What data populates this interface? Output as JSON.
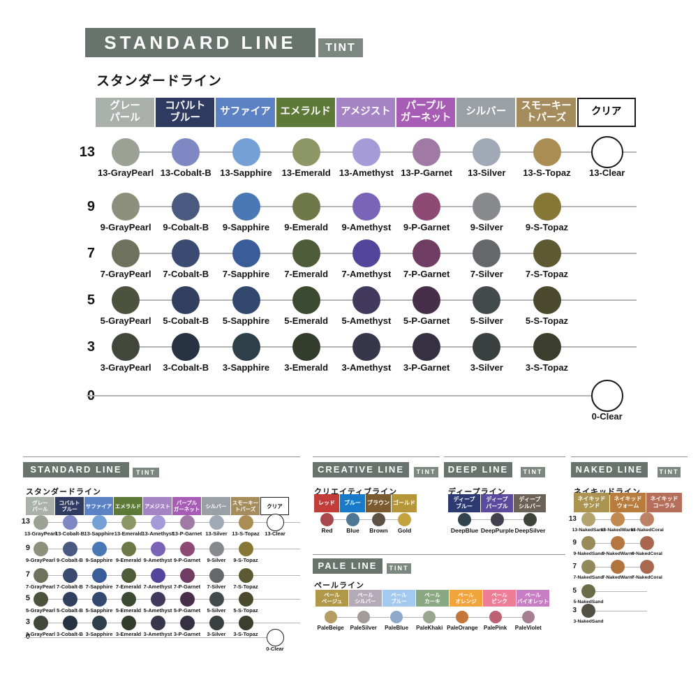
{
  "colors": {
    "title_bg": "#68736d",
    "tint_bg": "#7d8781",
    "rule_line": "#b3b3b3",
    "clear_outline": "#1a1a1a"
  },
  "panels": {
    "standard": {
      "title": "STANDARD LINE",
      "tint": "TINT",
      "subtitle": "スタンダードライン",
      "columns": [
        {
          "label": "グレー\nパール",
          "bg": "#a9b1aa",
          "fg": "#ffffff"
        },
        {
          "label": "コバルト\nブルー",
          "bg": "#2f3a61",
          "fg": "#ffffff"
        },
        {
          "label": "サファイア",
          "bg": "#5c82c5",
          "fg": "#ffffff"
        },
        {
          "label": "エメラルド",
          "bg": "#5e7a39",
          "fg": "#ffffff"
        },
        {
          "label": "アメジスト",
          "bg": "#a583c5",
          "fg": "#ffffff"
        },
        {
          "label": "パープル\nガーネット",
          "bg": "#a75cb5",
          "fg": "#ffffff"
        },
        {
          "label": "シルバー",
          "bg": "#9aa0a4",
          "fg": "#ffffff"
        },
        {
          "label": "スモーキー\nトパーズ",
          "bg": "#a58c5c",
          "fg": "#ffffff"
        },
        {
          "label": "クリア",
          "bg": "#ffffff",
          "fg": "#000000",
          "border": true
        }
      ],
      "rows": [
        {
          "level": "13",
          "swatches": [
            {
              "label": "13-GrayPearl",
              "color": "#9ba295"
            },
            {
              "label": "13-Cobalt-B",
              "color": "#7e88c3"
            },
            {
              "label": "13-Sapphire",
              "color": "#74a0d6"
            },
            {
              "label": "13-Emerald",
              "color": "#8d9765"
            },
            {
              "label": "13-Amethyst",
              "color": "#a49bd8"
            },
            {
              "label": "13-P-Garnet",
              "color": "#a07aa5"
            },
            {
              "label": "13-Silver",
              "color": "#a0a9b5"
            },
            {
              "label": "13-S-Topaz",
              "color": "#a98d55"
            },
            {
              "label": "13-Clear",
              "color": "clear",
              "col": 8
            }
          ]
        },
        {
          "level": "9",
          "swatches": [
            {
              "label": "9-GrayPearl",
              "color": "#8d907c"
            },
            {
              "label": "9-Cobalt-B",
              "color": "#49597f"
            },
            {
              "label": "9-Sapphire",
              "color": "#4a78b5"
            },
            {
              "label": "9-Emerald",
              "color": "#6d7748"
            },
            {
              "label": "9-Amethyst",
              "color": "#7a64b8"
            },
            {
              "label": "9-P-Garnet",
              "color": "#8d4a75"
            },
            {
              "label": "9-Silver",
              "color": "#87898d"
            },
            {
              "label": "9-S-Topaz",
              "color": "#877736"
            }
          ]
        },
        {
          "level": "7",
          "swatches": [
            {
              "label": "7-GrayPearl",
              "color": "#6e715c"
            },
            {
              "label": "7-Cobalt-B",
              "color": "#3b4a70"
            },
            {
              "label": "7-Sapphire",
              "color": "#3a5d99"
            },
            {
              "label": "7-Emerald",
              "color": "#4f5c39"
            },
            {
              "label": "7-Amethyst",
              "color": "#53459c"
            },
            {
              "label": "7-P-Garnet",
              "color": "#6f3c63"
            },
            {
              "label": "7-Silver",
              "color": "#65676a"
            },
            {
              "label": "7-S-Topaz",
              "color": "#5d5a33"
            }
          ]
        },
        {
          "level": "5",
          "swatches": [
            {
              "label": "5-GrayPearl",
              "color": "#4c523e"
            },
            {
              "label": "5-Cobalt-B",
              "color": "#32405f"
            },
            {
              "label": "5-Sapphire",
              "color": "#32486e"
            },
            {
              "label": "5-Emerald",
              "color": "#3c4a31"
            },
            {
              "label": "5-Amethyst",
              "color": "#423a5d"
            },
            {
              "label": "5-P-Garnet",
              "color": "#472e49"
            },
            {
              "label": "5-Silver",
              "color": "#434a4c"
            },
            {
              "label": "5-S-Topaz",
              "color": "#4c4a2e"
            }
          ]
        },
        {
          "level": "3",
          "swatches": [
            {
              "label": "3-GrayPearl",
              "color": "#41473a"
            },
            {
              "label": "3-Cobalt-B",
              "color": "#273342"
            },
            {
              "label": "3-Sapphire",
              "color": "#2e3f4a"
            },
            {
              "label": "3-Emerald",
              "color": "#343d2c"
            },
            {
              "label": "3-Amethyst",
              "color": "#38364a"
            },
            {
              "label": "3-P-Garnet",
              "color": "#363142"
            },
            {
              "label": "3-Silver",
              "color": "#3a403f"
            },
            {
              "label": "3-S-Topaz",
              "color": "#3b3d2d"
            }
          ]
        },
        {
          "level": "0",
          "line_from_left": true,
          "swatches": [
            {
              "label": "0-Clear",
              "color": "clear",
              "col": 8
            }
          ]
        }
      ]
    },
    "creative": {
      "title": "CREATIVE LINE",
      "tint": "TINT",
      "subtitle": "クリエイティブライン",
      "columns": [
        {
          "label": "レッド",
          "bg": "#c23c39",
          "fg": "#ffffff"
        },
        {
          "label": "ブルー",
          "bg": "#187ac9",
          "fg": "#ffffff"
        },
        {
          "label": "ブラウン",
          "bg": "#7a5a2e",
          "fg": "#ffffff"
        },
        {
          "label": "ゴールド",
          "bg": "#b5963b",
          "fg": "#ffffff"
        }
      ],
      "rows": [
        {
          "swatches": [
            {
              "label": "Red",
              "color": "#a8484c"
            },
            {
              "label": "Blue",
              "color": "#4d7795"
            },
            {
              "label": "Brown",
              "color": "#5c5142"
            },
            {
              "label": "Gold",
              "color": "#c2a33d"
            }
          ]
        }
      ]
    },
    "deep": {
      "title": "DEEP LINE",
      "tint": "TINT",
      "subtitle": "ディープライン",
      "columns": [
        {
          "label": "ディープ\nブルー",
          "bg": "#2d3a71",
          "fg": "#ffffff"
        },
        {
          "label": "ディープ\nパープル",
          "bg": "#5c4a9d",
          "fg": "#ffffff"
        },
        {
          "label": "ディープ\nシルバー",
          "bg": "#6b6156",
          "fg": "#ffffff"
        }
      ],
      "rows": [
        {
          "swatches": [
            {
              "label": "DeepBlue",
              "color": "#31444d"
            },
            {
              "label": "DeepPurple",
              "color": "#43404f"
            },
            {
              "label": "DeepSilver",
              "color": "#3f4239"
            }
          ]
        }
      ]
    },
    "naked": {
      "title": "NAKED LINE",
      "tint": "TINT",
      "subtitle": "ネイキッドライン",
      "columns": [
        {
          "label": "ネイキッド\nサンド",
          "bg": "#ab9351",
          "fg": "#ffffff"
        },
        {
          "label": "ネイキッド\nウォーム",
          "bg": "#b87c3d",
          "fg": "#ffffff"
        },
        {
          "label": "ネイキッド\nコーラル",
          "bg": "#b56e59",
          "fg": "#ffffff"
        }
      ],
      "rows": [
        {
          "level": "13",
          "swatches": [
            {
              "label": "13-NakedSand",
              "color": "#b3a371"
            },
            {
              "label": "13-NakedWarm",
              "color": "#c28a50"
            },
            {
              "label": "13-NakedCoral",
              "color": "#bd8166"
            }
          ]
        },
        {
          "level": "9",
          "swatches": [
            {
              "label": "9-NakedSand",
              "color": "#968b59"
            },
            {
              "label": "9-NakedWarm",
              "color": "#b5773f"
            },
            {
              "label": "9-NakedCoral",
              "color": "#aa674f"
            }
          ]
        },
        {
          "level": "7",
          "swatches": [
            {
              "label": "7-NakedSand",
              "color": "#91885c"
            },
            {
              "label": "7-NakedWarm",
              "color": "#b0743c"
            },
            {
              "label": "7-NakedCoral",
              "color": "#a86950"
            }
          ]
        },
        {
          "level": "5",
          "swatches": [
            {
              "label": "5-NakedSand",
              "color": "#6b6b48"
            }
          ]
        },
        {
          "level": "3",
          "swatches": [
            {
              "label": "3-NakedSand",
              "color": "#524f45"
            }
          ]
        }
      ]
    },
    "pale": {
      "title": "PALE LINE",
      "tint": "TINT",
      "subtitle": "ペールライン",
      "columns": [
        {
          "label": "ペール\nベージュ",
          "bg": "#b0984a",
          "fg": "#ffffff"
        },
        {
          "label": "ペール\nシルバー",
          "bg": "#b5aab8",
          "fg": "#ffffff"
        },
        {
          "label": "ペール\nブルー",
          "bg": "#a3c9ee",
          "fg": "#ffffff"
        },
        {
          "label": "ペール\nカーキ",
          "bg": "#8aa883",
          "fg": "#ffffff"
        },
        {
          "label": "ペール\nオレンジ",
          "bg": "#f2a43c",
          "fg": "#ffffff"
        },
        {
          "label": "ペール\nピンク",
          "bg": "#ee7d98",
          "fg": "#ffffff"
        },
        {
          "label": "ペール\nバイオレット",
          "bg": "#c77fc3",
          "fg": "#ffffff"
        }
      ],
      "rows": [
        {
          "swatches": [
            {
              "label": "PaleBeige",
              "color": "#b59c62"
            },
            {
              "label": "PaleSilver",
              "color": "#a39a9c"
            },
            {
              "label": "PaleBlue",
              "color": "#8fa8cc"
            },
            {
              "label": "PaleKhaki",
              "color": "#9aa48f"
            },
            {
              "label": "PaleOrange",
              "color": "#c4763a"
            },
            {
              "label": "PalePink",
              "color": "#bd6273"
            },
            {
              "label": "PaleViolet",
              "color": "#a87f92"
            }
          ]
        }
      ]
    }
  }
}
